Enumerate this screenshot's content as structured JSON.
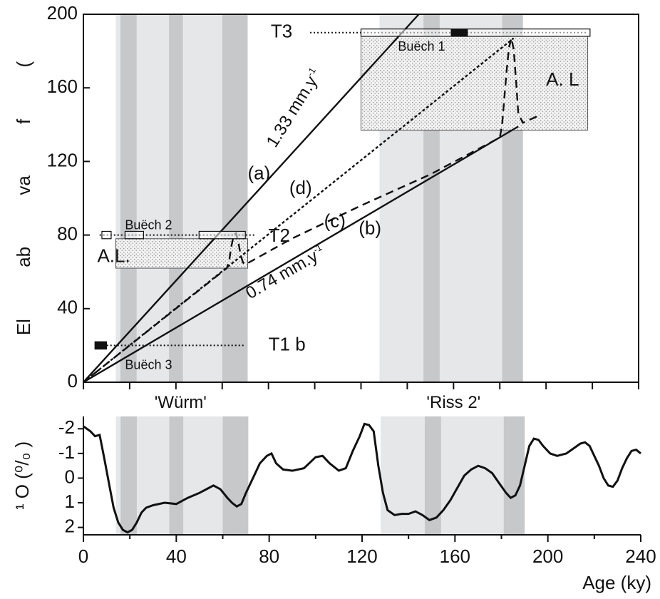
{
  "colors": {
    "glacial_light": "#e6e7e9",
    "glacial_dark": "#c6c8ca",
    "stipple_fill": "#ebebeb",
    "line": "#111111",
    "marker": "#111111"
  },
  "chart_data": [
    {
      "type": "line",
      "title": "",
      "xlabel": "",
      "ylabel": "El          ab          va          f          (",
      "xlim": [
        0,
        240
      ],
      "ylim": [
        0,
        200
      ],
      "x_ticks": [
        0,
        20,
        40,
        60,
        80,
        100,
        120,
        140,
        160,
        180,
        200,
        220,
        240
      ],
      "y_ticks": [
        0,
        40,
        80,
        120,
        160,
        200
      ],
      "grid": false,
      "shaded_periods": [
        {
          "from": 14,
          "to": 71,
          "tone": "light"
        },
        {
          "from": 16,
          "to": 23,
          "tone": "dark"
        },
        {
          "from": 37,
          "to": 43,
          "tone": "dark"
        },
        {
          "from": 60,
          "to": 71,
          "tone": "dark"
        },
        {
          "from": 128,
          "to": 190,
          "tone": "light"
        },
        {
          "from": 147,
          "to": 154,
          "tone": "dark"
        },
        {
          "from": 181,
          "to": 190,
          "tone": "dark"
        }
      ],
      "stage_labels": [
        {
          "text": "'Würm'",
          "x": 42
        },
        {
          "text": "'Riss  2'",
          "x": 160
        }
      ],
      "series": [
        {
          "name": "(a)",
          "style": "solid",
          "x": [
            0,
            145
          ],
          "y": [
            0,
            200
          ]
        },
        {
          "name": "(b)",
          "style": "solid",
          "x": [
            0,
            188
          ],
          "y": [
            0,
            139
          ]
        },
        {
          "name": "(c)",
          "style": "long-dash",
          "x": [
            0,
            62,
            63,
            64,
            65,
            66,
            67,
            68,
            69,
            70,
            90,
            120,
            150,
            180,
            181,
            182,
            183,
            184,
            185,
            186,
            187,
            188,
            190,
            197
          ],
          "y": [
            0,
            62,
            66,
            74,
            80,
            81,
            76,
            69,
            65,
            64,
            78,
            96,
            113,
            133,
            140,
            155,
            170,
            182,
            187,
            181,
            164,
            146,
            141,
            145
          ]
        },
        {
          "name": "(d)",
          "style": "short-dash",
          "x": [
            0,
            186
          ],
          "y": [
            0,
            187
          ]
        }
      ],
      "horizontal_levels": [
        {
          "name": "T3",
          "y": 190,
          "from": 98,
          "to": 218
        },
        {
          "name": "T2",
          "y": 80,
          "from": 7,
          "to": 74
        },
        {
          "name": "T1 b",
          "y": 20,
          "from": 7,
          "to": 70
        }
      ],
      "boxes": [
        {
          "label": "Buëch 1",
          "kind": "open",
          "x0": 120,
          "x1": 219,
          "y0": 188,
          "y1": 192
        },
        {
          "label": "",
          "kind": "filled",
          "x0": 159,
          "x1": 166,
          "y0": 188,
          "y1": 192
        },
        {
          "label": "Buëch 2",
          "kind": "open",
          "x0": 8,
          "x1": 12,
          "y0": 78,
          "y1": 82
        },
        {
          "label": "",
          "kind": "open",
          "x0": 18,
          "x1": 26,
          "y0": 78,
          "y1": 82
        },
        {
          "label": "",
          "kind": "open",
          "x0": 50,
          "x1": 70,
          "y0": 78,
          "y1": 82
        },
        {
          "label": "Buëch 3",
          "kind": "filled",
          "x0": 5,
          "x1": 10,
          "y0": 18,
          "y1": 22
        }
      ],
      "stipple_areas": [
        {
          "label": "A. L",
          "x0": 120,
          "x1": 218,
          "y0": 137,
          "y1": 188
        },
        {
          "label": "A.L.",
          "x0": 14,
          "x1": 71,
          "y0": 62,
          "y1": 78
        }
      ],
      "annotations": [
        {
          "text": "T3",
          "x": 81,
          "y": 190,
          "size": "big"
        },
        {
          "text": "T2",
          "x": 80,
          "y": 79,
          "size": "big"
        },
        {
          "text": "T1 b",
          "x": 80,
          "y": 20,
          "size": "big"
        },
        {
          "text": "A. L",
          "x": 200,
          "y": 164,
          "size": "big"
        },
        {
          "text": "A.L.",
          "x": 6,
          "y": 68,
          "size": "big"
        },
        {
          "text": "Buëch 1",
          "x": 136,
          "y": 182,
          "size": "small"
        },
        {
          "text": "Buëch 2",
          "x": 18,
          "y": 85,
          "size": "small"
        },
        {
          "text": "Buëch 3",
          "x": 18,
          "y": 9,
          "size": "small"
        },
        {
          "text": "(a)",
          "x": 71,
          "y": 113,
          "size": "big"
        },
        {
          "text": "(d)",
          "x": 89,
          "y": 105,
          "size": "big"
        },
        {
          "text": "(c)",
          "x": 104,
          "y": 87,
          "size": "big"
        },
        {
          "text": "(b)",
          "x": 119,
          "y": 83,
          "size": "big"
        }
      ],
      "rate_labels": [
        {
          "text": "1.33 mm.y",
          "sup": "-1",
          "x": 83,
          "y": 127,
          "angle": -58
        },
        {
          "text": "0.74 mm.y",
          "sup": "-1",
          "x": 72,
          "y": 45,
          "angle": -30
        }
      ]
    },
    {
      "type": "line",
      "title": "",
      "xlabel": "Age (ky)",
      "ylabel": "¹ O (⁰/₀ )",
      "xlim": [
        0,
        240
      ],
      "ylim": [
        2.3,
        -2.5
      ],
      "x_ticks": [
        0,
        40,
        80,
        120,
        160,
        200,
        240
      ],
      "y_ticks": [
        -2,
        -1,
        0,
        1,
        2
      ],
      "y_tick_labels": [
        "-2",
        "-1",
        "0",
        "1",
        "2"
      ],
      "grid": false,
      "series": [
        {
          "name": "",
          "x": [
            0,
            3,
            5,
            7,
            9,
            11,
            13,
            15,
            17,
            19,
            21,
            23,
            25,
            27,
            30,
            35,
            40,
            45,
            50,
            53,
            56,
            59,
            62,
            64,
            66,
            68,
            70,
            73,
            76,
            79,
            81,
            83,
            86,
            90,
            95,
            100,
            103,
            106,
            110,
            113,
            116,
            119,
            121,
            123,
            125,
            127,
            129,
            131,
            134,
            137,
            140,
            143,
            146,
            149,
            152,
            155,
            158,
            161,
            164,
            167,
            170,
            173,
            176,
            179,
            182,
            184,
            186,
            188,
            190,
            192,
            194,
            196,
            198,
            201,
            204,
            208,
            211,
            214,
            216,
            218,
            220,
            222,
            224,
            226,
            228,
            230,
            232,
            234,
            236,
            238,
            240
          ],
          "y": [
            -2.1,
            -1.9,
            -1.7,
            -1.75,
            -0.8,
            0.2,
            1.2,
            1.8,
            2.1,
            2.2,
            2.1,
            1.8,
            1.4,
            1.2,
            1.1,
            1.0,
            1.05,
            0.8,
            0.6,
            0.45,
            0.3,
            0.45,
            0.8,
            1.0,
            1.15,
            1.05,
            0.6,
            0.0,
            -0.6,
            -0.9,
            -1.0,
            -0.6,
            -0.35,
            -0.3,
            -0.4,
            -0.85,
            -0.9,
            -0.6,
            -0.3,
            -0.4,
            -1.1,
            -1.7,
            -2.2,
            -2.15,
            -1.9,
            -0.5,
            0.6,
            1.3,
            1.5,
            1.45,
            1.45,
            1.35,
            1.5,
            1.7,
            1.6,
            1.3,
            0.9,
            0.4,
            -0.1,
            -0.35,
            -0.5,
            -0.4,
            -0.2,
            0.2,
            0.6,
            0.8,
            0.7,
            0.3,
            -0.5,
            -1.3,
            -1.6,
            -1.55,
            -1.3,
            -1.0,
            -0.9,
            -1.0,
            -1.2,
            -1.4,
            -1.45,
            -1.3,
            -0.9,
            -0.5,
            0.0,
            0.3,
            0.35,
            0.1,
            -0.4,
            -0.8,
            -1.1,
            -1.15,
            -1.0
          ]
        }
      ],
      "shaded_periods": [
        {
          "from": 14,
          "to": 71,
          "tone": "light"
        },
        {
          "from": 16,
          "to": 23,
          "tone": "dark"
        },
        {
          "from": 37,
          "to": 43,
          "tone": "dark"
        },
        {
          "from": 60,
          "to": 71,
          "tone": "dark"
        },
        {
          "from": 128,
          "to": 190,
          "tone": "light"
        },
        {
          "from": 147,
          "to": 154,
          "tone": "dark"
        },
        {
          "from": 181,
          "to": 190,
          "tone": "dark"
        }
      ]
    }
  ]
}
